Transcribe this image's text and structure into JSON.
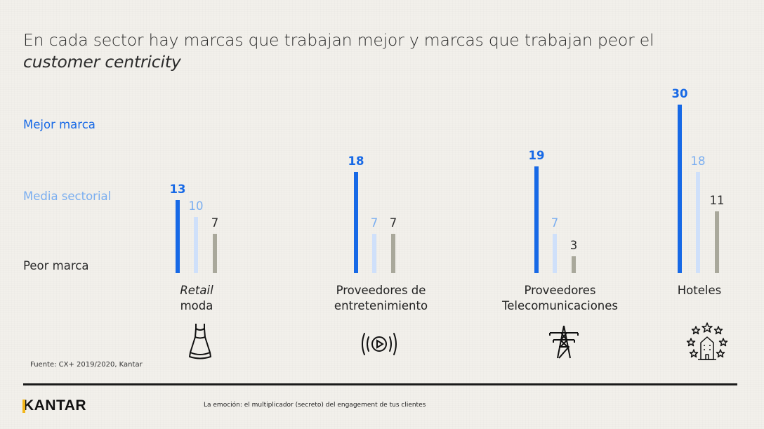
{
  "title": {
    "line1": "En cada sector hay marcas que trabajan mejor y marcas que trabajan peor el",
    "line2": "customer centricity"
  },
  "legend": {
    "best": "Mejor marca",
    "avg": "Media sectorial",
    "worst": "Peor marca"
  },
  "colors": {
    "best": "#1769e6",
    "avg": "#cfe0fa",
    "avg_label": "#7aaef0",
    "worst": "#a9a89b",
    "worst_label": "#2b2b2b"
  },
  "categories": [
    {
      "line1": "Retail",
      "line2": "moda",
      "icon": "dress-icon"
    },
    {
      "line1": "Proveedores de",
      "line2": "entretenimiento",
      "icon": "play-broadcast-icon"
    },
    {
      "line1": "Proveedores",
      "line2": "Telecomunicaciones",
      "icon": "transmission-tower-icon"
    },
    {
      "line1": "Hoteles",
      "line2": "",
      "icon": "hotel-stars-icon"
    }
  ],
  "chart_data": {
    "type": "bar",
    "categories": [
      "Retail moda",
      "Proveedores de entretenimiento",
      "Proveedores Telecomunicaciones",
      "Hoteles"
    ],
    "series": [
      {
        "name": "Mejor marca",
        "values": [
          13,
          18,
          19,
          30
        ]
      },
      {
        "name": "Media sectorial",
        "values": [
          10,
          7,
          7,
          18
        ]
      },
      {
        "name": "Peor marca",
        "values": [
          7,
          7,
          3,
          11
        ]
      }
    ],
    "title": "En cada sector hay marcas que trabajan mejor y marcas que trabajan peor el customer centricity"
  },
  "source": "Fuente: CX+ 2019/2020, Kantar",
  "footer": {
    "logo": "KANTAR",
    "tagline": "La emoción: el multiplicador (secreto) del engagement de tus clientes"
  }
}
